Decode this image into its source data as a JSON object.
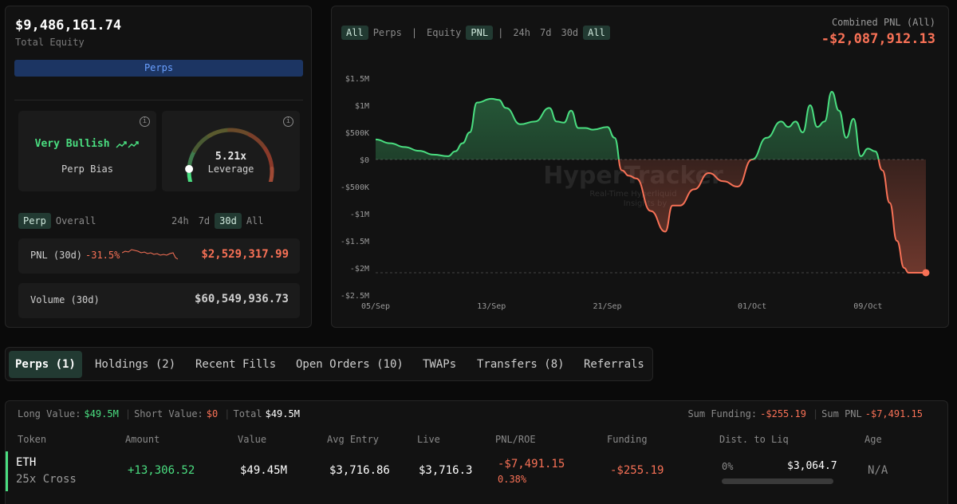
{
  "account": {
    "equity": "$9,486,161.74",
    "equity_label": "Total Equity",
    "perps_bar": "Perps"
  },
  "bias": {
    "title": "Very Bullish",
    "subtitle": "Perp Bias",
    "info": "i"
  },
  "leverage": {
    "value": "5.21x",
    "subtitle": "Leverage",
    "info": "i",
    "level_fraction": 0.13
  },
  "left_filters": {
    "scope": [
      "Perp",
      "Overall"
    ],
    "scope_active": 0,
    "periods": [
      "24h",
      "7d",
      "30d",
      "All"
    ],
    "period_active": 2
  },
  "pnl_row": {
    "label": "PNL (30d)",
    "pct": "-31.5%",
    "value": "$2,529,317.99"
  },
  "volume_row": {
    "label": "Volume (30d)",
    "value": "$60,549,936.73"
  },
  "chart_tabs": {
    "items": [
      "All",
      "Perps",
      "|",
      "Equity",
      "PNL",
      "|",
      "24h",
      "7d",
      "30d",
      "All"
    ],
    "active": [
      0,
      4,
      9
    ]
  },
  "combined": {
    "label": "Combined PNL (All)",
    "value": "-$2,087,912.13"
  },
  "watermark": {
    "title": "HyperTracker",
    "line1": "Real-Time Hyperliquid",
    "line2": "Insights by"
  },
  "chart_data": {
    "type": "area",
    "ylim": [
      -2500000,
      1500000
    ],
    "y_ticks": [
      1500000,
      1000000,
      500000,
      0,
      -500000,
      -1000000,
      -1500000,
      -2000000,
      -2500000
    ],
    "y_tick_labels": [
      "$1.5M",
      "$1M",
      "$500K",
      "$0",
      "-$500K",
      "-$1M",
      "-$1.5M",
      "-$2M",
      "-$2.5M"
    ],
    "x_tick_labels": [
      "05/Sep",
      "13/Sep",
      "21/Sep",
      "01/Oct",
      "09/Oct"
    ],
    "x_tick_days": [
      0,
      8,
      16,
      26,
      34
    ],
    "xlim": [
      0,
      38
    ],
    "grid": false,
    "reference_line": -2087912,
    "series": [
      {
        "x": [
          0,
          1,
          2,
          3,
          4,
          5,
          5.5,
          6,
          6.5,
          7,
          8,
          8.5,
          9,
          10,
          11,
          12,
          12.5,
          13,
          13.5,
          14,
          14.5,
          15,
          16,
          16.5,
          17,
          17.5,
          18,
          19,
          20,
          20.5,
          21,
          22,
          23,
          24,
          25,
          26,
          27,
          28,
          28.5,
          29,
          29.5,
          30,
          30.5,
          31,
          31.5,
          32,
          32.5,
          33,
          33.5,
          34,
          34.5,
          35,
          35.5,
          36,
          36.5,
          36.8,
          37,
          38
        ],
        "y": [
          370000,
          300000,
          230000,
          160000,
          90000,
          60000,
          150000,
          300000,
          500000,
          1050000,
          1120000,
          1100000,
          950000,
          650000,
          700000,
          950000,
          700000,
          680000,
          900000,
          580000,
          580000,
          550000,
          600000,
          400000,
          -200000,
          -300000,
          -350000,
          -950000,
          -1330000,
          -850000,
          -850000,
          -550000,
          -250000,
          -400000,
          -500000,
          0,
          400000,
          700000,
          600000,
          700000,
          500000,
          1000000,
          600000,
          700000,
          1250000,
          900000,
          400000,
          750000,
          60000,
          200000,
          150000,
          -200000,
          -800000,
          -1500000,
          -2000000,
          -2087912,
          -2087912,
          -2087912
        ]
      }
    ]
  },
  "tabs": [
    "Perps (1)",
    "Holdings (2)",
    "Recent Fills",
    "Open Orders (10)",
    "TWAPs",
    "Transfers (8)",
    "Referrals"
  ],
  "tabs_active": 0,
  "summary": {
    "long_label": "Long Value:",
    "long_value": "$49.5M",
    "short_label": "Short Value:",
    "short_value": "$0",
    "total_label": "Total",
    "total_value": "$49.5M",
    "funding_label": "Sum Funding:",
    "funding_value": "-$255.19",
    "pnl_label": "Sum PNL",
    "pnl_value": "-$7,491.15"
  },
  "table": {
    "headers": [
      "Token",
      "Amount",
      "Value",
      "Avg Entry",
      "Live",
      "PNL/ROE",
      "Funding",
      "Dist. to Liq",
      "Age"
    ],
    "rows": [
      {
        "token": "ETH",
        "leverage": "25x Cross",
        "amount": "+13,306.52",
        "value": "$49.45M",
        "avg_entry": "$3,716.86",
        "live": "$3,716.3",
        "pnl": "-$7,491.15",
        "roe": "0.38%",
        "funding": "-$255.19",
        "liq_pct": "0%",
        "liq_price": "$3,064.7",
        "age": "N/A"
      }
    ]
  },
  "colors": {
    "accent_green": "#4ade80",
    "accent_red": "#f87156",
    "perps_blue": "#1c3563"
  }
}
